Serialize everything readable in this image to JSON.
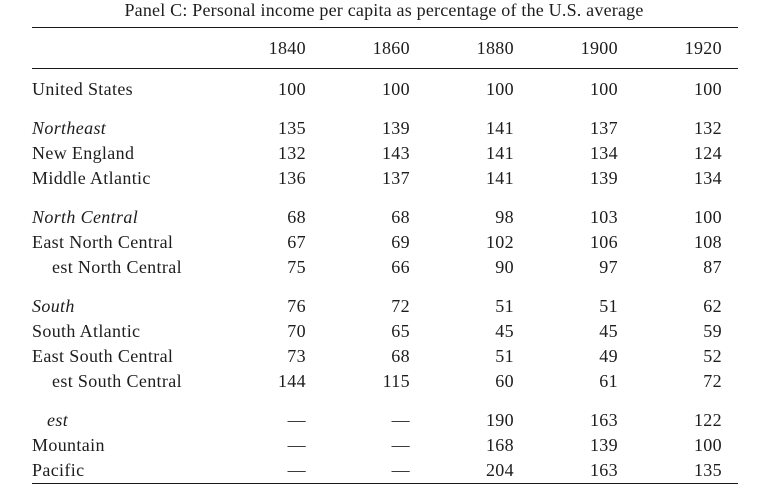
{
  "page": {
    "title": "Panel C: Personal income per capita as percentage of the U.S. average"
  },
  "table": {
    "columns": [
      "1840",
      "1860",
      "1880",
      "1900",
      "1920"
    ],
    "groups": [
      {
        "rows": [
          {
            "label": "United States",
            "style": "roman",
            "indent": 0,
            "values": [
              "100",
              "100",
              "100",
              "100",
              "100"
            ]
          }
        ]
      },
      {
        "rows": [
          {
            "label": "Northeast",
            "style": "italic",
            "indent": 0,
            "values": [
              "135",
              "139",
              "141",
              "137",
              "132"
            ]
          },
          {
            "label": "New England",
            "style": "roman",
            "indent": 0,
            "values": [
              "132",
              "143",
              "141",
              "134",
              "124"
            ]
          },
          {
            "label": "Middle Atlantic",
            "style": "roman",
            "indent": 0,
            "values": [
              "136",
              "137",
              "141",
              "139",
              "134"
            ]
          }
        ]
      },
      {
        "rows": [
          {
            "label": "North Central",
            "style": "italic",
            "indent": 0,
            "values": [
              "68",
              "68",
              "98",
              "103",
              "100"
            ]
          },
          {
            "label": "East North Central",
            "style": "roman",
            "indent": 0,
            "values": [
              "67",
              "69",
              "102",
              "106",
              "108"
            ]
          },
          {
            "label": "est North Central",
            "style": "roman",
            "indent": 20,
            "values": [
              "75",
              "66",
              "90",
              "97",
              "87"
            ]
          }
        ]
      },
      {
        "rows": [
          {
            "label": "South",
            "style": "italic",
            "indent": 0,
            "values": [
              "76",
              "72",
              "51",
              "51",
              "62"
            ]
          },
          {
            "label": "South Atlantic",
            "style": "roman",
            "indent": 0,
            "values": [
              "70",
              "65",
              "45",
              "45",
              "59"
            ]
          },
          {
            "label": "East South Central",
            "style": "roman",
            "indent": 0,
            "values": [
              "73",
              "68",
              "51",
              "49",
              "52"
            ]
          },
          {
            "label": "est South Central",
            "style": "roman",
            "indent": 20,
            "values": [
              "144",
              "115",
              "60",
              "61",
              "72"
            ]
          }
        ]
      },
      {
        "rows": [
          {
            "label": "est",
            "style": "italic",
            "indent": 15,
            "values": [
              "—",
              "—",
              "190",
              "163",
              "122"
            ]
          },
          {
            "label": "Mountain",
            "style": "roman",
            "indent": 0,
            "values": [
              "—",
              "—",
              "168",
              "139",
              "100"
            ]
          },
          {
            "label": "Pacific",
            "style": "roman",
            "indent": 0,
            "values": [
              "—",
              "—",
              "204",
              "163",
              "135"
            ]
          }
        ]
      }
    ]
  },
  "colors": {
    "background": "#ffffff",
    "text": "#1d1d1d",
    "rule": "#1a1a1a"
  }
}
